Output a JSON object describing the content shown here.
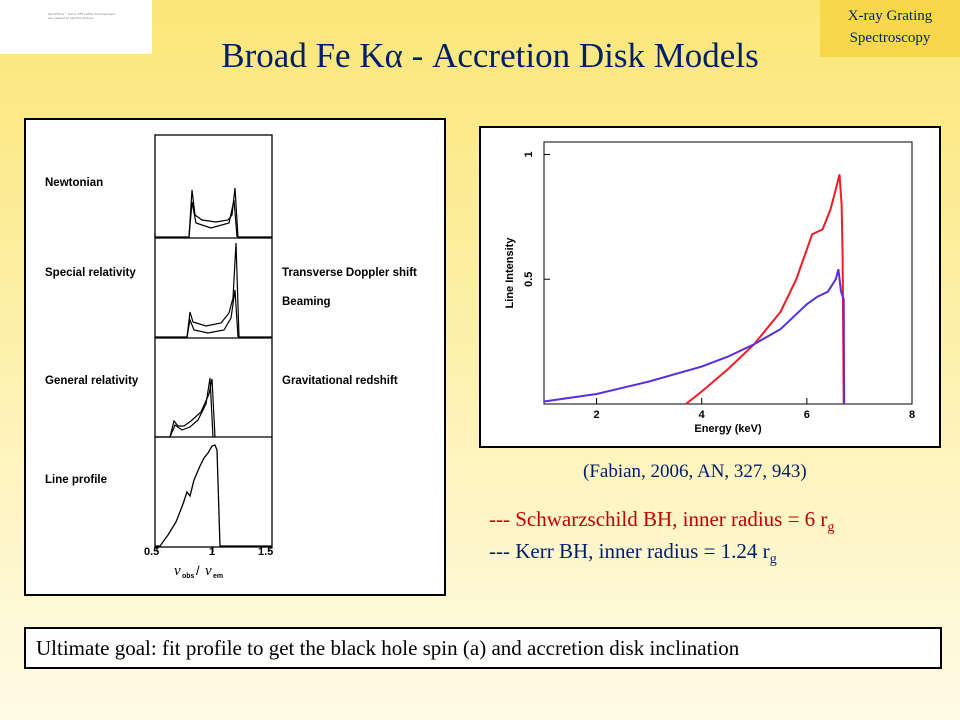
{
  "slide": {
    "title": "Broad Fe Kα - Accretion Disk Models",
    "badge_line1": "X-ray Grating",
    "badge_line2": "Spectroscopy",
    "placeholder_text": "QuickTime™ and a TIFF (LZW) decompressor are needed to see this picture.",
    "citation": "(Fabian, 2006, AN, 327, 943)",
    "legend_red": "--- Schwarzschild BH, inner radius = 6 r",
    "legend_red_sub": "g",
    "legend_blue": "--- Kerr BH, inner radius = 1.24 r",
    "legend_blue_sub": "g",
    "goal": "Ultimate goal: fit profile to get the black hole spin (a) and accretion disk inclination"
  },
  "colors": {
    "title_blue": "#001f6b",
    "badge_bg": "#f8d84a",
    "red": "#c00000",
    "series_red": "#ee1c24",
    "series_blue": "#5a2de0"
  },
  "chart_data": [
    {
      "type": "line",
      "panels": [
        {
          "left_label": "Newtonian",
          "right_label": ""
        },
        {
          "left_label": "Special relativity",
          "right_label": "Transverse Doppler shift",
          "right_label_2": "Beaming"
        },
        {
          "left_label": "General relativity",
          "right_label": "Gravitational redshift"
        },
        {
          "left_label": "Line profile",
          "right_label": ""
        }
      ],
      "xticks": [
        "0.5",
        "1",
        "1.5"
      ],
      "xlabel": "ν_obs / ν_em"
    },
    {
      "type": "line",
      "xlabel": "Energy (keV)",
      "ylabel": "Line Intensity",
      "xlim": [
        1,
        8
      ],
      "ylim": [
        0,
        1.05
      ],
      "xticks": [
        "2",
        "4",
        "6",
        "8"
      ],
      "yticks": [
        "0.5",
        "1"
      ],
      "series": [
        {
          "color": "red",
          "x": [
            3.7,
            4.0,
            4.5,
            5.0,
            5.5,
            5.8,
            6.0,
            6.1,
            6.3,
            6.45,
            6.55,
            6.62,
            6.66,
            6.68,
            6.7
          ],
          "y": [
            0.0,
            0.05,
            0.14,
            0.24,
            0.37,
            0.5,
            0.62,
            0.68,
            0.7,
            0.78,
            0.86,
            0.92,
            0.8,
            0.6,
            0.0
          ]
        },
        {
          "color": "blue",
          "x": [
            1.0,
            2.0,
            3.0,
            4.0,
            4.5,
            5.0,
            5.5,
            5.8,
            6.0,
            6.2,
            6.4,
            6.55,
            6.6,
            6.65,
            6.7,
            6.71
          ],
          "y": [
            0.01,
            0.04,
            0.09,
            0.15,
            0.19,
            0.24,
            0.3,
            0.36,
            0.4,
            0.43,
            0.45,
            0.5,
            0.54,
            0.45,
            0.42,
            0.0
          ]
        }
      ]
    }
  ]
}
